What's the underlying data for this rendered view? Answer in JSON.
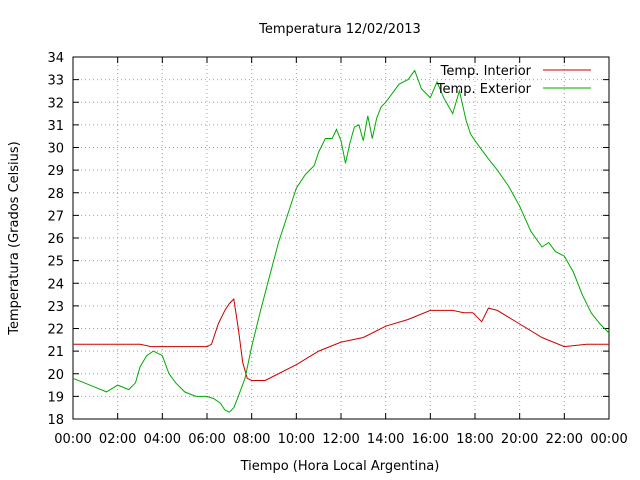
{
  "chart_data": {
    "type": "line",
    "title": "Temperatura 12/02/2013",
    "xlabel": "Tiempo (Hora Local Argentina)",
    "ylabel": "Temperatura (Grados Celsius)",
    "x_tick_labels": [
      "00:00",
      "02:00",
      "04:00",
      "06:00",
      "08:00",
      "10:00",
      "12:00",
      "14:00",
      "16:00",
      "18:00",
      "20:00",
      "22:00",
      "00:00"
    ],
    "xlim": [
      0,
      24
    ],
    "ylim": [
      18,
      34
    ],
    "y_ticks": [
      18,
      19,
      20,
      21,
      22,
      23,
      24,
      25,
      26,
      27,
      28,
      29,
      30,
      31,
      32,
      33,
      34
    ],
    "grid": true,
    "legend_position": "top-right",
    "series": [
      {
        "name": "Temp. Interior",
        "color": "#cc0000",
        "x": [
          0,
          1,
          2,
          3,
          3.5,
          4,
          5,
          6,
          6.2,
          6.5,
          6.8,
          7.0,
          7.2,
          7.4,
          7.6,
          7.8,
          8.0,
          8.3,
          8.6,
          9,
          10,
          11,
          12,
          13,
          14,
          15,
          16,
          17,
          17.5,
          17.9,
          18.3,
          18.6,
          19,
          19.5,
          20,
          21,
          22,
          23,
          24
        ],
        "y": [
          21.3,
          21.3,
          21.3,
          21.3,
          21.2,
          21.2,
          21.2,
          21.2,
          21.3,
          22.2,
          22.8,
          23.1,
          23.3,
          22.0,
          20.5,
          19.8,
          19.7,
          19.7,
          19.7,
          19.9,
          20.4,
          21.0,
          21.4,
          21.6,
          22.1,
          22.4,
          22.8,
          22.8,
          22.7,
          22.7,
          22.3,
          22.9,
          22.8,
          22.5,
          22.2,
          21.6,
          21.2,
          21.3,
          21.3
        ]
      },
      {
        "name": "Temp. Exterior",
        "color": "#00aa00",
        "x": [
          0,
          0.5,
          1,
          1.5,
          2,
          2.5,
          2.8,
          3,
          3.3,
          3.6,
          4,
          4.3,
          4.6,
          5,
          5.5,
          6,
          6.3,
          6.6,
          6.8,
          7,
          7.2,
          7.4,
          7.7,
          8,
          8.4,
          8.8,
          9.2,
          9.6,
          10,
          10.4,
          10.8,
          11,
          11.3,
          11.6,
          11.8,
          12,
          12.2,
          12.4,
          12.6,
          12.8,
          13,
          13.2,
          13.4,
          13.6,
          13.8,
          14,
          14.3,
          14.6,
          15,
          15.3,
          15.6,
          16,
          16.3,
          16.6,
          17,
          17.3,
          17.6,
          17.8,
          18,
          18.3,
          18.6,
          19,
          19.5,
          20,
          20.5,
          21,
          21.3,
          21.6,
          22,
          22.4,
          22.8,
          23.2,
          23.6,
          24
        ],
        "y": [
          19.8,
          19.6,
          19.4,
          19.2,
          19.5,
          19.3,
          19.6,
          20.3,
          20.8,
          21.0,
          20.8,
          20.0,
          19.6,
          19.2,
          19.0,
          19.0,
          18.9,
          18.7,
          18.4,
          18.3,
          18.5,
          19.0,
          19.8,
          21.2,
          22.8,
          24.3,
          25.8,
          27.0,
          28.2,
          28.8,
          29.2,
          29.8,
          30.4,
          30.4,
          30.8,
          30.3,
          29.3,
          30.2,
          30.9,
          31.0,
          30.3,
          31.4,
          30.4,
          31.3,
          31.8,
          32.0,
          32.4,
          32.8,
          33.0,
          33.4,
          32.6,
          32.2,
          32.9,
          32.2,
          31.5,
          32.5,
          31.2,
          30.6,
          30.3,
          29.9,
          29.5,
          29.0,
          28.3,
          27.4,
          26.3,
          25.6,
          25.8,
          25.4,
          25.2,
          24.5,
          23.5,
          22.7,
          22.2,
          21.8
        ]
      }
    ]
  }
}
